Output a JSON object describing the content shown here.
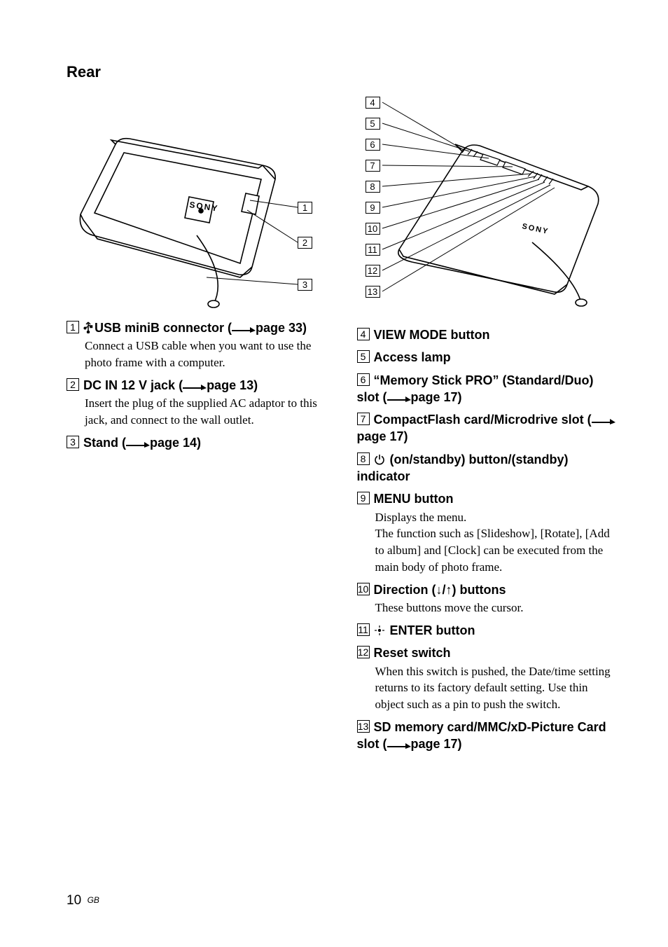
{
  "section_title": "Rear",
  "footer": {
    "page_number": "10",
    "region": "GB"
  },
  "left_figure": {
    "callouts": [
      "1",
      "2",
      "3"
    ]
  },
  "right_figure": {
    "callouts": [
      "4",
      "5",
      "6",
      "7",
      "8",
      "9",
      "10",
      "11",
      "12",
      "13"
    ]
  },
  "left_items": [
    {
      "num": "1",
      "icon": "usb-fork",
      "title_parts": [
        "USB miniB connector ("
      ],
      "pageref": "page 33)",
      "body": "Connect a USB cable when you want to use the photo frame with a computer."
    },
    {
      "num": "2",
      "title_parts": [
        "DC IN 12 V jack ("
      ],
      "pageref": "page 13)",
      "body": "Insert the plug of the supplied AC adaptor to this jack, and connect to the wall outlet."
    },
    {
      "num": "3",
      "title_parts": [
        "Stand ("
      ],
      "pageref": "page 14)"
    }
  ],
  "right_items": [
    {
      "num": "4",
      "title_parts": [
        "VIEW MODE button"
      ]
    },
    {
      "num": "5",
      "title_parts": [
        "Access lamp"
      ]
    },
    {
      "num": "6",
      "title_parts": [
        "“Memory Stick PRO” (Standard/Duo) slot ("
      ],
      "pageref": "page 17)"
    },
    {
      "num": "7",
      "title_parts": [
        "CompactFlash card/Microdrive slot ("
      ],
      "pageref": "page 17)"
    },
    {
      "num": "8",
      "icon": "power",
      "title_parts": [
        " (on/standby) button/(standby) indicator"
      ]
    },
    {
      "num": "9",
      "title_parts": [
        "MENU button"
      ],
      "body": "Displays the menu.\nThe function such as [Slideshow], [Rotate], [Add to album] and [Clock] can be executed from the main body of photo frame."
    },
    {
      "num": "10",
      "title_parts": [
        "Direction (↓/↑) buttons"
      ],
      "body": "These buttons move the cursor."
    },
    {
      "num": "11",
      "icon": "enter-dot",
      "title_parts": [
        " ENTER button"
      ]
    },
    {
      "num": "12",
      "title_parts": [
        "Reset switch"
      ],
      "body": "When this switch is pushed, the Date/time setting  returns to its factory default setting. Use thin object such as a pin to push the switch."
    },
    {
      "num": "13",
      "title_parts": [
        "SD memory card/MMC/xD-Picture Card slot ("
      ],
      "pageref": "page 17)"
    }
  ]
}
